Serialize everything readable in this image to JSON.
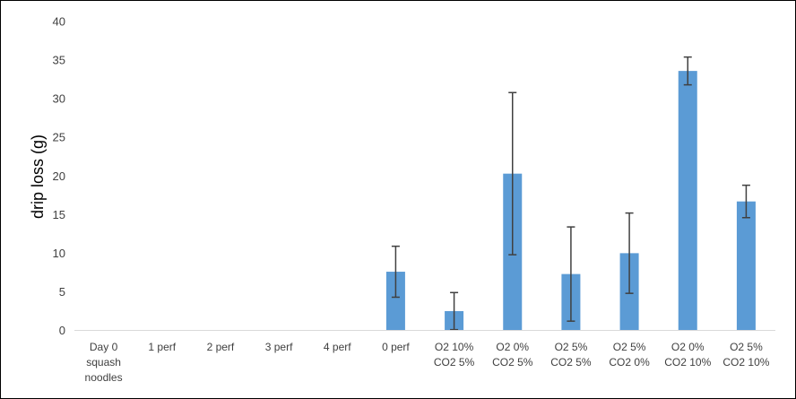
{
  "chart_data": {
    "type": "bar",
    "title": "",
    "xlabel": "",
    "ylabel": "drip loss (g)",
    "ylim": [
      0,
      40
    ],
    "y_ticks": [
      "0",
      "5",
      "10",
      "15",
      "20",
      "25",
      "30",
      "35",
      "40"
    ],
    "grid": false,
    "legend": "none",
    "bar_color": "#5B9BD5",
    "error_bar_color": "#404040",
    "categories": [
      [
        "Day 0",
        "squash",
        "noodles"
      ],
      [
        "1 perf"
      ],
      [
        "2 perf"
      ],
      [
        "3 perf"
      ],
      [
        "4 perf"
      ],
      [
        "0 perf"
      ],
      [
        "O2 10%",
        "CO2 5%"
      ],
      [
        "O2 0%",
        "CO2 5%"
      ],
      [
        "O2 5%",
        "CO2 5%"
      ],
      [
        "O2 5%",
        "CO2 0%"
      ],
      [
        "O2 0%",
        "CO2 10%"
      ],
      [
        "O2 5%",
        "CO2 10%"
      ]
    ],
    "values": [
      0,
      0,
      0,
      0,
      0,
      7.6,
      2.5,
      20.3,
      7.3,
      10.0,
      33.6,
      16.7
    ],
    "errors": [
      null,
      null,
      null,
      null,
      null,
      3.3,
      2.4,
      10.5,
      6.1,
      5.2,
      1.8,
      2.1
    ]
  }
}
